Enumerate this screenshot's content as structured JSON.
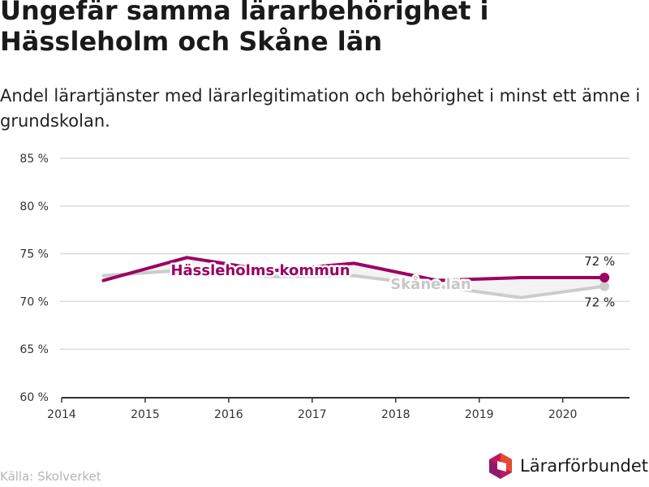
{
  "title": "Ungefär samma lärarbehörighet i Hässleholm och Skåne län",
  "subtitle": "Andel lärartjänster med lärarlegitimation och behörighet i minst ett ämne i grundskolan.",
  "source": "Källa: Skolverket",
  "logo": {
    "text": "Lärarförbundet",
    "icon": "lararforbundet-hexagon-icon"
  },
  "chart_data": {
    "type": "line",
    "x": [
      2014.5,
      2015.5,
      2016.5,
      2017.5,
      2018.5,
      2019.5,
      2020.5
    ],
    "xticks": [
      "2014",
      "2015",
      "2016",
      "2017",
      "2018",
      "2019",
      "2020"
    ],
    "yticks": [
      "60 %",
      "65 %",
      "70 %",
      "75 %",
      "80 %",
      "85 %"
    ],
    "ytick_values": [
      60,
      65,
      70,
      75,
      80,
      85
    ],
    "xlim": [
      2014,
      2020.8
    ],
    "ylim": [
      60,
      85
    ],
    "grid": true,
    "series": [
      {
        "name": "Hässleholms kommun",
        "color": "#9b0062",
        "values": [
          72.2,
          74.6,
          73.2,
          74.0,
          72.2,
          72.5,
          72.5
        ],
        "end_label": "72 %"
      },
      {
        "name": "Skåne län",
        "color": "#cccccc",
        "values": [
          72.7,
          73.3,
          72.6,
          72.7,
          71.6,
          70.4,
          71.6
        ],
        "end_label": "72 %"
      }
    ]
  }
}
